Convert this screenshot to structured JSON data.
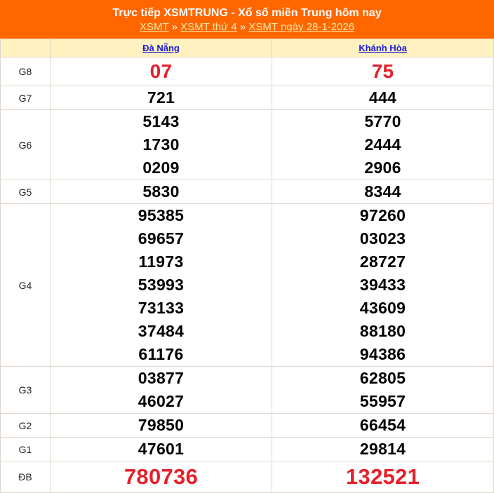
{
  "header": {
    "title": "Trực tiếp XSMTRUNG - Xổ số miền Trung hôm nay",
    "breadcrumbs": [
      "XSMT",
      "XSMT thứ 4",
      "XSMT ngày 28-1-2026"
    ],
    "separator": "»"
  },
  "columns": [
    "Đà Nẵng",
    "Khánh Hòa"
  ],
  "prizes": [
    {
      "label": "G8",
      "style": "red",
      "cols": [
        [
          "07"
        ],
        [
          "75"
        ]
      ]
    },
    {
      "label": "G7",
      "style": "",
      "cols": [
        [
          "721"
        ],
        [
          "444"
        ]
      ]
    },
    {
      "label": "G6",
      "style": "",
      "cols": [
        [
          "5143",
          "1730",
          "0209"
        ],
        [
          "5770",
          "2444",
          "2906"
        ]
      ]
    },
    {
      "label": "G5",
      "style": "",
      "cols": [
        [
          "5830"
        ],
        [
          "8344"
        ]
      ]
    },
    {
      "label": "G4",
      "style": "",
      "cols": [
        [
          "95385",
          "69657",
          "11973",
          "53993",
          "73133",
          "37484",
          "61176"
        ],
        [
          "97260",
          "03023",
          "28727",
          "39433",
          "43609",
          "88180",
          "94386"
        ]
      ]
    },
    {
      "label": "G3",
      "style": "",
      "cols": [
        [
          "03877",
          "46027"
        ],
        [
          "62805",
          "55957"
        ]
      ]
    },
    {
      "label": "G2",
      "style": "",
      "cols": [
        [
          "79850"
        ],
        [
          "66454"
        ]
      ]
    },
    {
      "label": "G1",
      "style": "",
      "cols": [
        [
          "47601"
        ],
        [
          "29814"
        ]
      ]
    },
    {
      "label": "ĐB",
      "style": "big",
      "cols": [
        [
          "780736"
        ],
        [
          "132521"
        ]
      ]
    }
  ],
  "colors": {
    "header_bg": "#ff6600",
    "column_header_bg": "#fff2c0",
    "highlight_number": "#e5202a",
    "link": "#1a1adb"
  }
}
